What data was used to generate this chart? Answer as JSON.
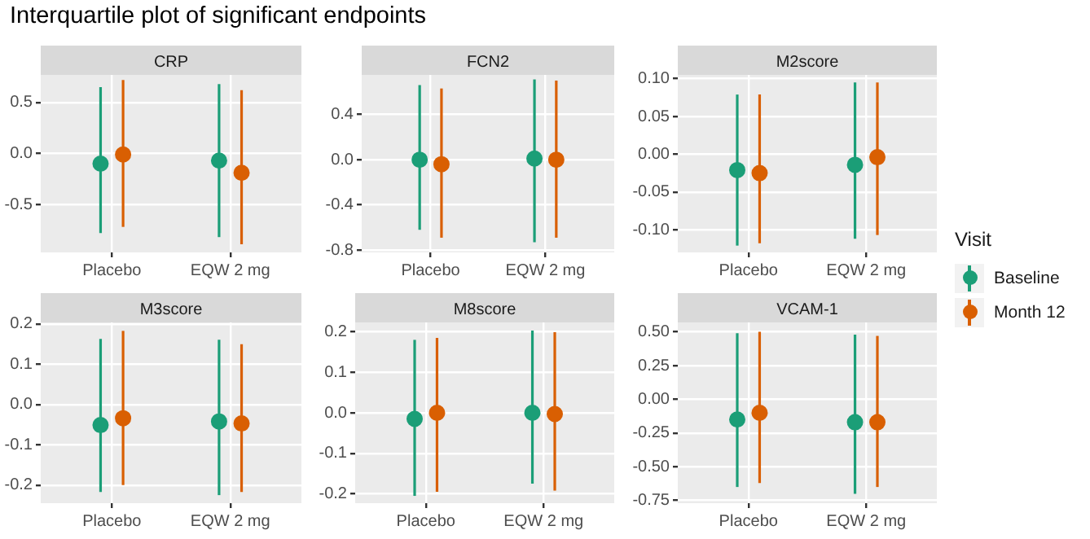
{
  "chart_data": [
    {
      "type": "scatter",
      "title": "CRP",
      "annotations": [
        "Interquartile plot of significant endpoints"
      ],
      "categories": [
        "Placebo",
        "EQW 2 mg"
      ],
      "marker": "circle",
      "grid": true,
      "legend": "right",
      "legend_title": "Visit",
      "ylim": [
        -0.97,
        0.77
      ],
      "yticks": [
        {
          "value": -0.5,
          "label": "-0.5"
        },
        {
          "value": 0,
          "label": "0.0"
        },
        {
          "value": 0.5,
          "label": "0.5"
        }
      ],
      "series": [
        {
          "name": "Baseline",
          "color": "#1b9e77",
          "values": [
            -0.1,
            -0.07
          ],
          "errors": [
            [
              -0.78,
              0.65
            ],
            [
              -0.82,
              0.68
            ]
          ]
        },
        {
          "name": "Month 12",
          "color": "#d95f02",
          "values": [
            -0.01,
            -0.19
          ],
          "errors": [
            [
              -0.72,
              0.72
            ],
            [
              -0.89,
              0.62
            ]
          ]
        }
      ]
    },
    {
      "type": "scatter",
      "title": "FCN2",
      "categories": [
        "Placebo",
        "EQW 2 mg"
      ],
      "marker": "circle",
      "grid": true,
      "ylim": [
        -0.82,
        0.75
      ],
      "yticks": [
        {
          "value": -0.8,
          "label": "-0.8"
        },
        {
          "value": -0.4,
          "label": "-0.4"
        },
        {
          "value": 0,
          "label": "0.0"
        },
        {
          "value": 0.4,
          "label": "0.4"
        }
      ],
      "series": [
        {
          "color": "#1b9e77",
          "values": [
            0.0,
            0.01
          ],
          "errors": [
            [
              -0.62,
              0.66
            ],
            [
              -0.73,
              0.71
            ]
          ]
        },
        {
          "color": "#d95f02",
          "values": [
            -0.04,
            0.0
          ],
          "errors": [
            [
              -0.69,
              0.63
            ],
            [
              -0.69,
              0.7
            ]
          ]
        }
      ]
    },
    {
      "type": "scatter",
      "title": "M2score",
      "categories": [
        "Placebo",
        "EQW 2 mg"
      ],
      "marker": "circle",
      "grid": true,
      "ylim": [
        -0.13,
        0.105
      ],
      "yticks": [
        {
          "value": -0.1,
          "label": "-0.10"
        },
        {
          "value": -0.05,
          "label": "-0.05"
        },
        {
          "value": 0,
          "label": "0.00"
        },
        {
          "value": 0.05,
          "label": "0.05"
        },
        {
          "value": 0.1,
          "label": "0.10"
        }
      ],
      "series": [
        {
          "color": "#1b9e77",
          "values": [
            -0.021,
            -0.014
          ],
          "errors": [
            [
              -0.121,
              0.079
            ],
            [
              -0.112,
              0.095
            ]
          ]
        },
        {
          "color": "#d95f02",
          "values": [
            -0.025,
            -0.004
          ],
          "errors": [
            [
              -0.118,
              0.079
            ],
            [
              -0.107,
              0.095
            ]
          ]
        }
      ]
    },
    {
      "type": "scatter",
      "title": "M3score",
      "categories": [
        "Placebo",
        "EQW 2 mg"
      ],
      "marker": "circle",
      "grid": true,
      "ylim": [
        -0.245,
        0.204
      ],
      "yticks": [
        {
          "value": -0.2,
          "label": "-0.2"
        },
        {
          "value": -0.1,
          "label": "-0.1"
        },
        {
          "value": 0,
          "label": "0.0"
        },
        {
          "value": 0.1,
          "label": "0.1"
        },
        {
          "value": 0.2,
          "label": "0.2"
        }
      ],
      "series": [
        {
          "color": "#1b9e77",
          "values": [
            -0.051,
            -0.042
          ],
          "errors": [
            [
              -0.217,
              0.163
            ],
            [
              -0.225,
              0.161
            ]
          ]
        },
        {
          "color": "#d95f02",
          "values": [
            -0.034,
            -0.047
          ],
          "errors": [
            [
              -0.2,
              0.183
            ],
            [
              -0.217,
              0.15
            ]
          ]
        }
      ]
    },
    {
      "type": "scatter",
      "title": "M8score",
      "categories": [
        "Placebo",
        "EQW 2 mg"
      ],
      "marker": "circle",
      "grid": true,
      "ylim": [
        -0.223,
        0.223
      ],
      "yticks": [
        {
          "value": -0.2,
          "label": "-0.2"
        },
        {
          "value": -0.1,
          "label": "-0.1"
        },
        {
          "value": 0,
          "label": "0.0"
        },
        {
          "value": 0.1,
          "label": "0.1"
        },
        {
          "value": 0.2,
          "label": "0.2"
        }
      ],
      "series": [
        {
          "color": "#1b9e77",
          "values": [
            -0.015,
            0.0
          ],
          "errors": [
            [
              -0.205,
              0.18
            ],
            [
              -0.175,
              0.203
            ]
          ]
        },
        {
          "color": "#d95f02",
          "values": [
            0.0,
            -0.003
          ],
          "errors": [
            [
              -0.195,
              0.185
            ],
            [
              -0.192,
              0.199
            ]
          ]
        }
      ]
    },
    {
      "type": "scatter",
      "title": "VCAM-1",
      "categories": [
        "Placebo",
        "EQW 2 mg"
      ],
      "marker": "circle",
      "grid": true,
      "ylim": [
        -0.77,
        0.57
      ],
      "yticks": [
        {
          "value": -0.75,
          "label": "-0.75"
        },
        {
          "value": -0.5,
          "label": "-0.50"
        },
        {
          "value": -0.25,
          "label": "-0.25"
        },
        {
          "value": 0,
          "label": "0.00"
        },
        {
          "value": 0.25,
          "label": "0.25"
        },
        {
          "value": 0.5,
          "label": "0.50"
        }
      ],
      "series": [
        {
          "color": "#1b9e77",
          "values": [
            -0.15,
            -0.17
          ],
          "errors": [
            [
              -0.65,
              0.49
            ],
            [
              -0.7,
              0.48
            ]
          ]
        },
        {
          "color": "#d95f02",
          "values": [
            -0.1,
            -0.17
          ],
          "errors": [
            [
              -0.62,
              0.5
            ],
            [
              -0.65,
              0.47
            ]
          ]
        }
      ]
    }
  ]
}
